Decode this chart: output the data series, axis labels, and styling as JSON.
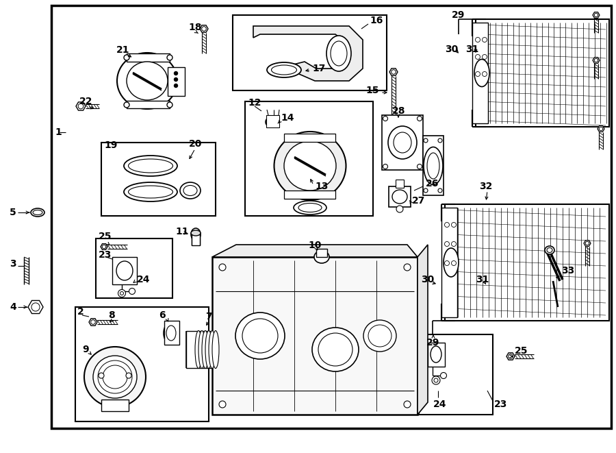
{
  "bg_color": "#ffffff",
  "line_color": "#000000",
  "border_lw": 2.0,
  "label_size": 10
}
